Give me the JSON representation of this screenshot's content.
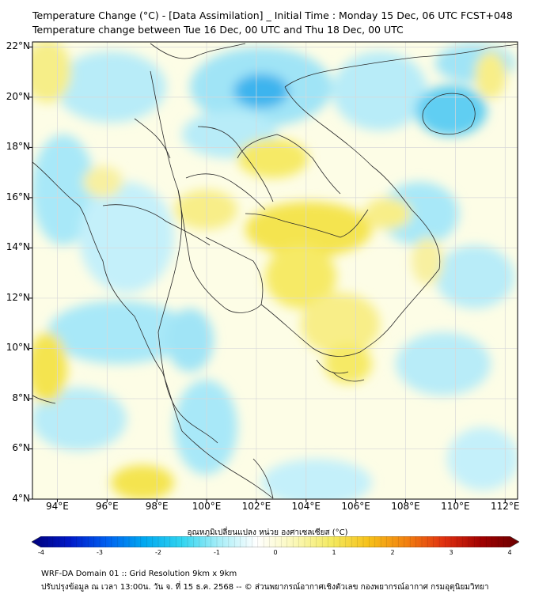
{
  "header": {
    "title_line1": "Temperature Change (°C) - [Data Assimilation] _ Initial Time : Monday 15 Dec, 06 UTC FCST+048",
    "title_line2": "Temperature change between Tue 16 Dec, 00 UTC and Thu 18 Dec, 00 UTC"
  },
  "axes": {
    "lat_labels": [
      "22°N",
      "20°N",
      "18°N",
      "16°N",
      "14°N",
      "12°N",
      "10°N",
      "8°N",
      "6°N",
      "4°N"
    ],
    "lon_labels": [
      "94°E",
      "96°E",
      "98°E",
      "100°E",
      "102°E",
      "104°E",
      "106°E",
      "108°E",
      "110°E",
      "112°E"
    ]
  },
  "colorbar": {
    "title": "อุณหภูมิเปลี่ยนแปลง หน่วย องศาเซลเซียส (°C)",
    "ticks": [
      "-4",
      "-3",
      "-2",
      "-1",
      "0",
      "1",
      "2",
      "3",
      "4"
    ],
    "range": [
      -4,
      4
    ],
    "colors": [
      "#00007a",
      "#0018c8",
      "#0060f0",
      "#00a8f0",
      "#30d4f0",
      "#a8eef8",
      "#ffffff",
      "#fbf8b8",
      "#f4ea60",
      "#f6c018",
      "#f28010",
      "#e03010",
      "#a00000",
      "#6a0000"
    ]
  },
  "footer": {
    "line1": "WRF-DA Domain 01 :: Grid Resolution 9km x 9km",
    "line2": "ปรับปรุงข้อมูล ณ เวลา 13:00น. วัน จ. ที่ 15 ธ.ค. 2568 -- © ส่วนพยากรณ์อากาศเชิงตัวเลข กองพยากรณ์อากาศ กรมอุตุนิยมวิทยา"
  }
}
